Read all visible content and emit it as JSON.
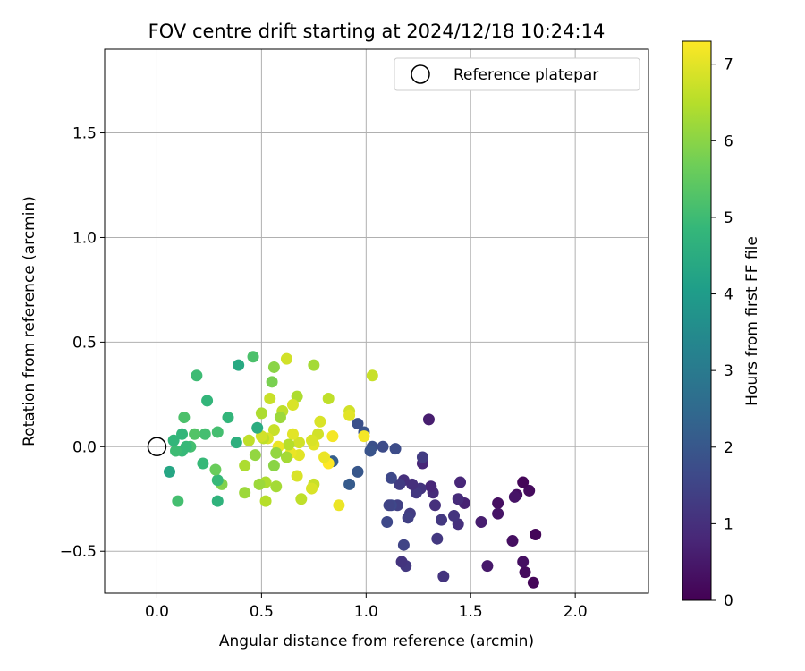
{
  "chart_data": {
    "type": "scatter",
    "title": "FOV centre drift starting at 2024/12/18 10:24:14",
    "xlabel": "Angular distance from reference (arcmin)",
    "ylabel": "Rotation from reference (arcmin)",
    "xlim": [
      -0.25,
      2.35
    ],
    "ylim": [
      -0.7,
      1.9
    ],
    "xticks": [
      {
        "value": 0.0,
        "label": "0.0"
      },
      {
        "value": 0.5,
        "label": "0.5"
      },
      {
        "value": 1.0,
        "label": "1.0"
      },
      {
        "value": 1.5,
        "label": "1.5"
      },
      {
        "value": 2.0,
        "label": "2.0"
      }
    ],
    "yticks": [
      {
        "value": -0.5,
        "label": "−0.5"
      },
      {
        "value": 0.0,
        "label": "0.0"
      },
      {
        "value": 0.5,
        "label": "0.5"
      },
      {
        "value": 1.0,
        "label": "1.0"
      },
      {
        "value": 1.5,
        "label": "1.5"
      }
    ],
    "grid": true,
    "legend": {
      "position": "top-right",
      "entries": [
        {
          "label": "Reference platepar",
          "marker": "open-circle"
        }
      ]
    },
    "reference_point": {
      "x": 0.0,
      "y": 0.0
    },
    "colorbar": {
      "label": "Hours from first FF file",
      "colormap": "viridis",
      "range": [
        0,
        7.3
      ],
      "ticks": [
        {
          "value": 0,
          "label": "0"
        },
        {
          "value": 1,
          "label": "1"
        },
        {
          "value": 2,
          "label": "2"
        },
        {
          "value": 3,
          "label": "3"
        },
        {
          "value": 4,
          "label": "4"
        },
        {
          "value": 5,
          "label": "5"
        },
        {
          "value": 6,
          "label": "6"
        },
        {
          "value": 7,
          "label": "7"
        }
      ]
    },
    "colors": {
      "viridis": [
        "#440154",
        "#482878",
        "#3e4989",
        "#31688e",
        "#26828e",
        "#1f9e89",
        "#35b779",
        "#6ece58",
        "#b5de2b",
        "#fde725"
      ]
    },
    "points": [
      {
        "x": 1.8,
        "y": -0.65,
        "hours": 0.1
      },
      {
        "x": 1.76,
        "y": -0.6,
        "hours": 0.2
      },
      {
        "x": 1.75,
        "y": -0.55,
        "hours": 0.3
      },
      {
        "x": 1.81,
        "y": -0.42,
        "hours": 0.1
      },
      {
        "x": 1.78,
        "y": -0.21,
        "hours": 0.2
      },
      {
        "x": 1.75,
        "y": -0.17,
        "hours": 0.1
      },
      {
        "x": 1.72,
        "y": -0.23,
        "hours": 0.3
      },
      {
        "x": 1.71,
        "y": -0.24,
        "hours": 0.4
      },
      {
        "x": 1.7,
        "y": -0.45,
        "hours": 0.3
      },
      {
        "x": 1.63,
        "y": -0.27,
        "hours": 0.3
      },
      {
        "x": 1.63,
        "y": -0.32,
        "hours": 0.4
      },
      {
        "x": 1.58,
        "y": -0.57,
        "hours": 0.5
      },
      {
        "x": 1.55,
        "y": -0.36,
        "hours": 0.6
      },
      {
        "x": 1.47,
        "y": -0.27,
        "hours": 0.7
      },
      {
        "x": 1.45,
        "y": -0.17,
        "hours": 0.8
      },
      {
        "x": 1.44,
        "y": -0.25,
        "hours": 0.9
      },
      {
        "x": 1.44,
        "y": -0.37,
        "hours": 1.0
      },
      {
        "x": 1.42,
        "y": -0.33,
        "hours": 1.1
      },
      {
        "x": 1.37,
        "y": -0.62,
        "hours": 1.1
      },
      {
        "x": 1.36,
        "y": -0.35,
        "hours": 1.2
      },
      {
        "x": 1.34,
        "y": -0.44,
        "hours": 1.2
      },
      {
        "x": 1.33,
        "y": -0.28,
        "hours": 1.0
      },
      {
        "x": 1.32,
        "y": -0.22,
        "hours": 0.9
      },
      {
        "x": 1.31,
        "y": -0.19,
        "hours": 0.8
      },
      {
        "x": 1.3,
        "y": 0.13,
        "hours": 0.6
      },
      {
        "x": 1.27,
        "y": -0.08,
        "hours": 0.8
      },
      {
        "x": 1.27,
        "y": -0.05,
        "hours": 1.3
      },
      {
        "x": 1.26,
        "y": -0.2,
        "hours": 1.1
      },
      {
        "x": 1.24,
        "y": -0.22,
        "hours": 1.2
      },
      {
        "x": 1.22,
        "y": -0.18,
        "hours": 1.0
      },
      {
        "x": 1.21,
        "y": -0.32,
        "hours": 1.3
      },
      {
        "x": 1.2,
        "y": -0.34,
        "hours": 1.4
      },
      {
        "x": 1.19,
        "y": -0.57,
        "hours": 1.2
      },
      {
        "x": 1.18,
        "y": -0.47,
        "hours": 1.5
      },
      {
        "x": 1.17,
        "y": -0.55,
        "hours": 1.1
      },
      {
        "x": 1.18,
        "y": -0.16,
        "hours": 1.0
      },
      {
        "x": 1.16,
        "y": -0.18,
        "hours": 1.3
      },
      {
        "x": 1.15,
        "y": -0.28,
        "hours": 1.4
      },
      {
        "x": 1.12,
        "y": -0.28,
        "hours": 1.6
      },
      {
        "x": 1.12,
        "y": -0.15,
        "hours": 1.6
      },
      {
        "x": 1.11,
        "y": -0.28,
        "hours": 1.5
      },
      {
        "x": 1.1,
        "y": -0.36,
        "hours": 1.6
      },
      {
        "x": 1.14,
        "y": -0.01,
        "hours": 1.7
      },
      {
        "x": 1.08,
        "y": 0.0,
        "hours": 1.7
      },
      {
        "x": 1.03,
        "y": 0.0,
        "hours": 1.8
      },
      {
        "x": 1.02,
        "y": -0.02,
        "hours": 1.9
      },
      {
        "x": 0.99,
        "y": 0.07,
        "hours": 1.9
      },
      {
        "x": 0.96,
        "y": 0.11,
        "hours": 1.8
      },
      {
        "x": 0.96,
        "y": -0.12,
        "hours": 2.0
      },
      {
        "x": 0.92,
        "y": -0.18,
        "hours": 2.1
      },
      {
        "x": 0.84,
        "y": -0.07,
        "hours": 2.2
      },
      {
        "x": 0.99,
        "y": 0.05,
        "hours": 7.2
      },
      {
        "x": 1.03,
        "y": 0.34,
        "hours": 6.7
      },
      {
        "x": 0.92,
        "y": 0.17,
        "hours": 6.8
      },
      {
        "x": 0.92,
        "y": 0.15,
        "hours": 7.0
      },
      {
        "x": 0.87,
        "y": -0.28,
        "hours": 7.1
      },
      {
        "x": 0.84,
        "y": 0.05,
        "hours": 7.2
      },
      {
        "x": 0.82,
        "y": -0.08,
        "hours": 7.3
      },
      {
        "x": 0.8,
        "y": -0.05,
        "hours": 7.1
      },
      {
        "x": 0.82,
        "y": 0.23,
        "hours": 6.6
      },
      {
        "x": 0.78,
        "y": 0.12,
        "hours": 6.9
      },
      {
        "x": 0.77,
        "y": 0.06,
        "hours": 6.8
      },
      {
        "x": 0.75,
        "y": 0.01,
        "hours": 7.0
      },
      {
        "x": 0.74,
        "y": 0.03,
        "hours": 6.9
      },
      {
        "x": 0.75,
        "y": -0.18,
        "hours": 6.7
      },
      {
        "x": 0.74,
        "y": -0.2,
        "hours": 6.9
      },
      {
        "x": 0.75,
        "y": 0.39,
        "hours": 6.3
      },
      {
        "x": 0.68,
        "y": 0.02,
        "hours": 6.8
      },
      {
        "x": 0.68,
        "y": -0.04,
        "hours": 7.0
      },
      {
        "x": 0.67,
        "y": -0.14,
        "hours": 6.9
      },
      {
        "x": 0.69,
        "y": -0.25,
        "hours": 6.6
      },
      {
        "x": 0.67,
        "y": 0.24,
        "hours": 6.4
      },
      {
        "x": 0.65,
        "y": 0.2,
        "hours": 6.9
      },
      {
        "x": 0.65,
        "y": 0.06,
        "hours": 7.0
      },
      {
        "x": 0.64,
        "y": -0.03,
        "hours": 7.1
      },
      {
        "x": 0.63,
        "y": 0.01,
        "hours": 6.5
      },
      {
        "x": 0.62,
        "y": -0.05,
        "hours": 6.3
      },
      {
        "x": 0.62,
        "y": 0.42,
        "hours": 6.8
      },
      {
        "x": 0.6,
        "y": 0.17,
        "hours": 6.6
      },
      {
        "x": 0.59,
        "y": 0.14,
        "hours": 6.2
      },
      {
        "x": 0.58,
        "y": 0.0,
        "hours": 7.1
      },
      {
        "x": 0.57,
        "y": -0.03,
        "hours": 6.1
      },
      {
        "x": 0.56,
        "y": 0.08,
        "hours": 6.7
      },
      {
        "x": 0.56,
        "y": 0.38,
        "hours": 6.0
      },
      {
        "x": 0.57,
        "y": -0.19,
        "hours": 6.3
      },
      {
        "x": 0.56,
        "y": -0.09,
        "hours": 6.0
      },
      {
        "x": 0.55,
        "y": 0.31,
        "hours": 5.8
      },
      {
        "x": 0.54,
        "y": 0.23,
        "hours": 6.7
      },
      {
        "x": 0.53,
        "y": 0.04,
        "hours": 6.9
      },
      {
        "x": 0.52,
        "y": -0.17,
        "hours": 6.4
      },
      {
        "x": 0.52,
        "y": -0.26,
        "hours": 6.5
      },
      {
        "x": 0.51,
        "y": 0.04,
        "hours": 6.6
      },
      {
        "x": 0.5,
        "y": 0.05,
        "hours": 6.8
      },
      {
        "x": 0.5,
        "y": 0.16,
        "hours": 6.4
      },
      {
        "x": 0.49,
        "y": -0.18,
        "hours": 6.2
      },
      {
        "x": 0.47,
        "y": -0.04,
        "hours": 6.1
      },
      {
        "x": 0.48,
        "y": 0.09,
        "hours": 4.5
      },
      {
        "x": 0.46,
        "y": 0.43,
        "hours": 5.2
      },
      {
        "x": 0.44,
        "y": 0.03,
        "hours": 6.6
      },
      {
        "x": 0.42,
        "y": -0.09,
        "hours": 6.4
      },
      {
        "x": 0.42,
        "y": -0.22,
        "hours": 6.2
      },
      {
        "x": 0.39,
        "y": 0.39,
        "hours": 4.4
      },
      {
        "x": 0.38,
        "y": 0.02,
        "hours": 4.6
      },
      {
        "x": 0.34,
        "y": 0.14,
        "hours": 4.8
      },
      {
        "x": 0.31,
        "y": -0.18,
        "hours": 5.9
      },
      {
        "x": 0.29,
        "y": -0.16,
        "hours": 4.9
      },
      {
        "x": 0.28,
        "y": -0.11,
        "hours": 5.6
      },
      {
        "x": 0.29,
        "y": 0.07,
        "hours": 5.1
      },
      {
        "x": 0.29,
        "y": -0.26,
        "hours": 4.7
      },
      {
        "x": 0.24,
        "y": 0.22,
        "hours": 4.8
      },
      {
        "x": 0.23,
        "y": 0.06,
        "hours": 5.1
      },
      {
        "x": 0.22,
        "y": -0.08,
        "hours": 4.9
      },
      {
        "x": 0.19,
        "y": 0.34,
        "hours": 5.0
      },
      {
        "x": 0.18,
        "y": 0.06,
        "hours": 5.3
      },
      {
        "x": 0.16,
        "y": 0.0,
        "hours": 5.1
      },
      {
        "x": 0.14,
        "y": 0.0,
        "hours": 4.9
      },
      {
        "x": 0.13,
        "y": 0.14,
        "hours": 5.2
      },
      {
        "x": 0.12,
        "y": 0.06,
        "hours": 4.8
      },
      {
        "x": 0.12,
        "y": -0.02,
        "hours": 4.9
      },
      {
        "x": 0.1,
        "y": -0.26,
        "hours": 5.1
      },
      {
        "x": 0.09,
        "y": -0.02,
        "hours": 5.0
      },
      {
        "x": 0.08,
        "y": 0.03,
        "hours": 4.8
      },
      {
        "x": 0.06,
        "y": -0.12,
        "hours": 4.3
      }
    ]
  }
}
